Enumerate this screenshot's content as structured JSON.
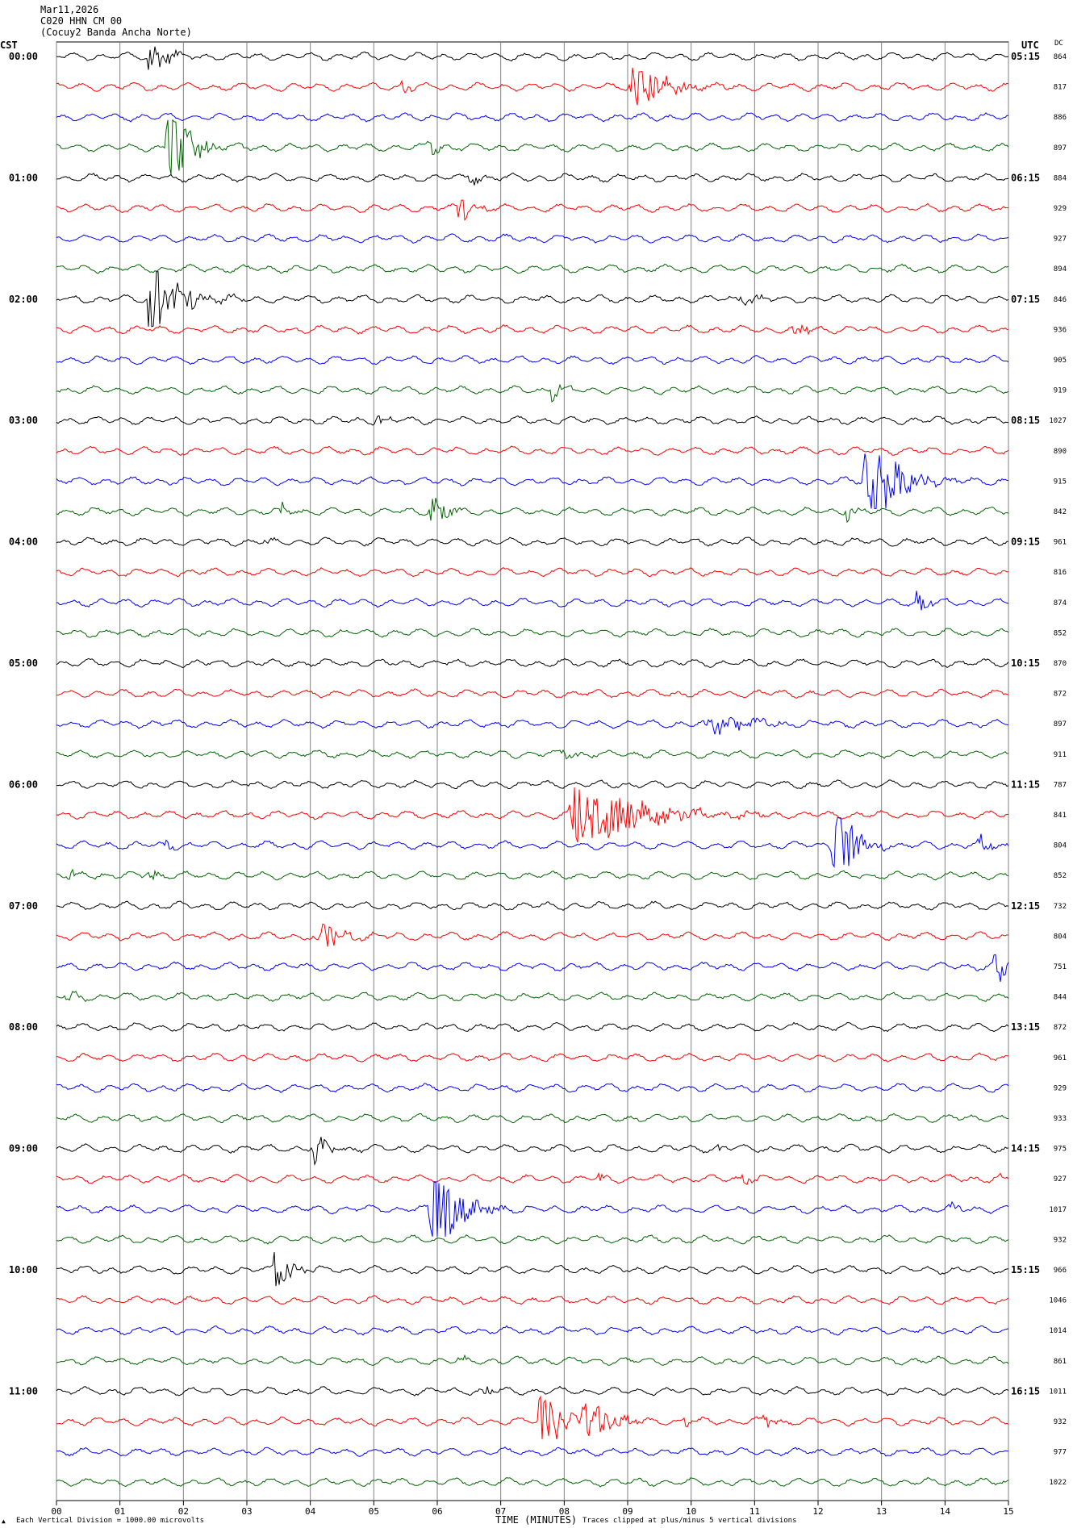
{
  "header": {
    "date": "Mar11,2026",
    "station": "C020 HHN CM 00",
    "network_name": "(Cocuy2 Banda Ancha Norte)"
  },
  "labels": {
    "left_tz": "CST",
    "right_tz": "UTC",
    "dc": "DC"
  },
  "footer": {
    "scale_note": "Each Vertical Division = 1000.00 microvolts",
    "xlabel": "TIME (MINUTES)",
    "clip_note": "Traces clipped at plus/minus 5 vertical divisions",
    "corner_mark": "▲"
  },
  "chart_data": {
    "type": "seismogram_helicorder",
    "x_range_minutes": [
      0,
      15
    ],
    "x_ticks": [
      "00",
      "01",
      "02",
      "03",
      "04",
      "05",
      "06",
      "07",
      "08",
      "09",
      "10",
      "11",
      "12",
      "13",
      "14",
      "15"
    ],
    "trace_colors": [
      "#000000",
      "#ff0000",
      "#0000ff",
      "#006400"
    ],
    "rows_per_hour": 4,
    "left_hour_labels": [
      "00:00",
      "01:00",
      "02:00",
      "03:00",
      "04:00",
      "05:00",
      "06:00",
      "07:00",
      "08:00",
      "09:00",
      "10:00",
      "11:00"
    ],
    "right_hour_labels": [
      "05:15",
      "06:15",
      "07:15",
      "08:15",
      "09:15",
      "10:15",
      "11:15",
      "12:15",
      "13:15",
      "14:15",
      "15:15",
      "16:15"
    ],
    "dc_values": [
      "864",
      "817",
      "886",
      "897",
      "884",
      "929",
      "927",
      "894",
      "846",
      "936",
      "905",
      "919",
      "1027",
      "890",
      "915",
      "842",
      "961",
      "816",
      "874",
      "852",
      "870",
      "872",
      "897",
      "911",
      "787",
      "841",
      "804",
      "852",
      "732",
      "804",
      "751",
      "844",
      "872",
      "961",
      "929",
      "933",
      "975",
      "927",
      "1017",
      "932",
      "966",
      "1046",
      "1014",
      "861",
      "1011",
      "932",
      "977",
      "1022"
    ],
    "events": [
      {
        "row": 0,
        "minute": 1.45,
        "amp": 2.0,
        "dur": 0.5
      },
      {
        "row": 1,
        "minute": 5.45,
        "amp": 0.6,
        "dur": 0.3
      },
      {
        "row": 1,
        "minute": 9.05,
        "amp": 2.4,
        "dur": 1.0
      },
      {
        "row": 3,
        "minute": 1.75,
        "amp": 5.0,
        "dur": 0.6
      },
      {
        "row": 3,
        "minute": 5.85,
        "amp": 0.7,
        "dur": 0.5
      },
      {
        "row": 4,
        "minute": 6.5,
        "amp": 0.6,
        "dur": 0.4
      },
      {
        "row": 5,
        "minute": 6.35,
        "amp": 1.5,
        "dur": 0.4
      },
      {
        "row": 8,
        "minute": 1.45,
        "amp": 5.0,
        "dur": 0.8
      },
      {
        "row": 8,
        "minute": 10.75,
        "amp": 0.7,
        "dur": 0.5
      },
      {
        "row": 9,
        "minute": 11.65,
        "amp": 1.4,
        "dur": 0.3
      },
      {
        "row": 11,
        "minute": 7.8,
        "amp": 1.0,
        "dur": 0.5
      },
      {
        "row": 12,
        "minute": 5.05,
        "amp": 0.5,
        "dur": 0.3
      },
      {
        "row": 14,
        "minute": 12.75,
        "amp": 5.0,
        "dur": 0.9
      },
      {
        "row": 15,
        "minute": 3.55,
        "amp": 0.6,
        "dur": 0.3
      },
      {
        "row": 15,
        "minute": 5.9,
        "amp": 1.6,
        "dur": 0.5
      },
      {
        "row": 15,
        "minute": 12.45,
        "amp": 0.6,
        "dur": 0.3
      },
      {
        "row": 16,
        "minute": 3.3,
        "amp": 0.5,
        "dur": 0.3
      },
      {
        "row": 18,
        "minute": 13.55,
        "amp": 1.5,
        "dur": 0.3
      },
      {
        "row": 22,
        "minute": 10.25,
        "amp": 1.0,
        "dur": 1.4
      },
      {
        "row": 23,
        "minute": 7.95,
        "amp": 0.5,
        "dur": 0.6
      },
      {
        "row": 25,
        "minute": 8.1,
        "amp": 4.0,
        "dur": 1.8
      },
      {
        "row": 26,
        "minute": 1.7,
        "amp": 0.6,
        "dur": 0.2
      },
      {
        "row": 26,
        "minute": 12.25,
        "amp": 5.0,
        "dur": 0.6
      },
      {
        "row": 26,
        "minute": 14.55,
        "amp": 0.7,
        "dur": 0.5
      },
      {
        "row": 27,
        "minute": 0.2,
        "amp": 0.6,
        "dur": 0.5
      },
      {
        "row": 27,
        "minute": 1.4,
        "amp": 0.7,
        "dur": 0.4
      },
      {
        "row": 29,
        "minute": 4.1,
        "amp": 1.6,
        "dur": 0.7
      },
      {
        "row": 30,
        "minute": 14.8,
        "amp": 2.5,
        "dur": 0.3
      },
      {
        "row": 31,
        "minute": 0.15,
        "amp": 0.5,
        "dur": 0.4
      },
      {
        "row": 36,
        "minute": 4.05,
        "amp": 1.5,
        "dur": 0.4
      },
      {
        "row": 36,
        "minute": 10.45,
        "amp": 0.5,
        "dur": 0.2
      },
      {
        "row": 37,
        "minute": 8.55,
        "amp": 0.6,
        "dur": 0.2
      },
      {
        "row": 37,
        "minute": 10.8,
        "amp": 0.5,
        "dur": 0.3
      },
      {
        "row": 37,
        "minute": 14.8,
        "amp": 0.8,
        "dur": 0.2
      },
      {
        "row": 38,
        "minute": 5.9,
        "amp": 5.0,
        "dur": 0.8
      },
      {
        "row": 38,
        "minute": 14.1,
        "amp": 0.5,
        "dur": 0.3
      },
      {
        "row": 40,
        "minute": 3.45,
        "amp": 2.0,
        "dur": 0.5
      },
      {
        "row": 43,
        "minute": 6.35,
        "amp": 0.5,
        "dur": 0.2
      },
      {
        "row": 44,
        "minute": 6.75,
        "amp": 0.6,
        "dur": 0.2
      },
      {
        "row": 45,
        "minute": 7.6,
        "amp": 2.8,
        "dur": 0.8
      },
      {
        "row": 45,
        "minute": 8.3,
        "amp": 2.2,
        "dur": 0.8
      },
      {
        "row": 45,
        "minute": 9.9,
        "amp": 0.6,
        "dur": 0.3
      },
      {
        "row": 45,
        "minute": 11.15,
        "amp": 0.7,
        "dur": 0.3
      }
    ]
  }
}
